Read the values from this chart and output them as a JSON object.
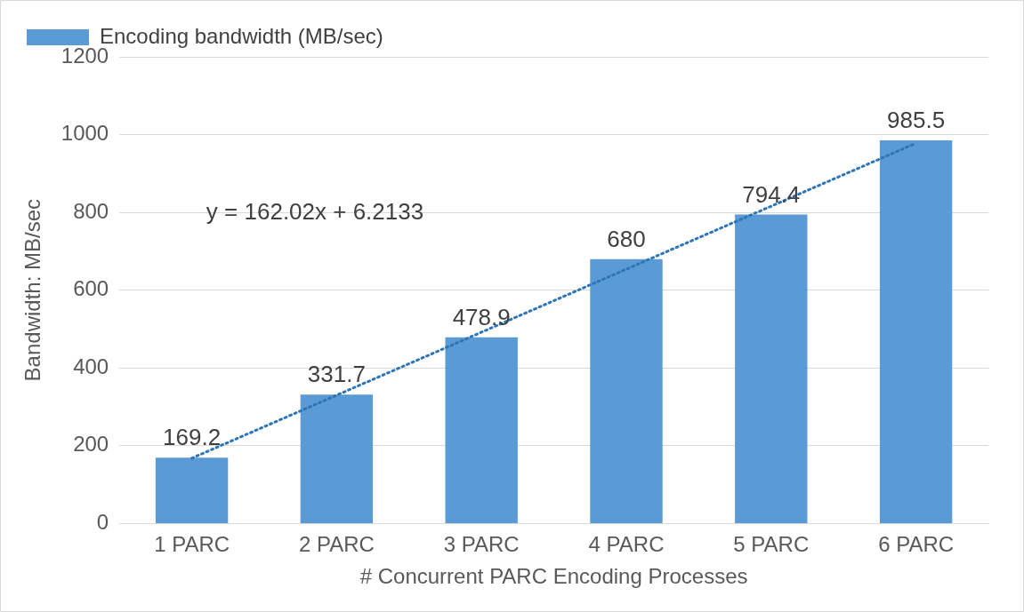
{
  "chart_data": {
    "type": "bar",
    "xlabel": "# Concurrent PARC Encoding Processes",
    "ylabel": "Bandwidth: MB/sec",
    "categories": [
      "1 PARC",
      "2 PARC",
      "3 PARC",
      "4 PARC",
      "5 PARC",
      "6 PARC"
    ],
    "series": [
      {
        "name": "Encoding bandwidth (MB/sec)",
        "color": "#5b9bd5",
        "values": [
          169.2,
          331.7,
          478.9,
          680,
          794.4,
          985.5
        ],
        "value_labels": [
          "169.2",
          "331.7",
          "478.9",
          "680",
          "794.4",
          "985.5"
        ]
      },
      {
        "type": "line",
        "color": "#2e75b6",
        "line_style": "dotted",
        "marker": "none",
        "x": [
          "1 PARC",
          "6 PARC"
        ],
        "values": [
          168,
          978
        ]
      }
    ],
    "ylim": [
      0,
      1200
    ],
    "yticks": [
      0,
      200,
      400,
      600,
      800,
      1000,
      1200
    ],
    "grid": "y",
    "legend": "top left",
    "annotations": [
      "y = 162.02x + 6.2133"
    ]
  }
}
